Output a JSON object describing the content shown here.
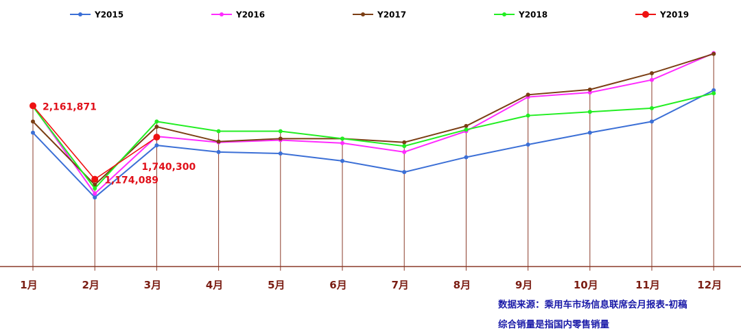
{
  "chart_data": {
    "type": "line",
    "categories": [
      "1月",
      "2月",
      "3月",
      "4月",
      "5月",
      "6月",
      "7月",
      "8月",
      "9月",
      "10月",
      "11月",
      "12月"
    ],
    "series": [
      {
        "name": "Y2015",
        "color": "#3b6fd6",
        "values": [
          1.8,
          0.93,
          1.63,
          1.54,
          1.52,
          1.42,
          1.27,
          1.47,
          1.64,
          1.8,
          1.95,
          2.37
        ]
      },
      {
        "name": "Y2016",
        "color": "#ff2bff",
        "values": [
          2.16,
          0.98,
          1.75,
          1.67,
          1.7,
          1.66,
          1.54,
          1.82,
          2.28,
          2.34,
          2.51,
          2.87
        ]
      },
      {
        "name": "Y2017",
        "color": "#7b3e14",
        "values": [
          1.95,
          1.1,
          1.88,
          1.68,
          1.72,
          1.72,
          1.67,
          1.89,
          2.31,
          2.38,
          2.6,
          2.86
        ]
      },
      {
        "name": "Y2018",
        "color": "#22ee22",
        "values": [
          2.15,
          1.05,
          1.95,
          1.82,
          1.82,
          1.72,
          1.62,
          1.84,
          2.03,
          2.08,
          2.13,
          2.33
        ]
      },
      {
        "name": "Y2019",
        "color": "#ee1111",
        "values": [
          2.161871,
          1.174089,
          1.7403,
          null,
          null,
          null,
          null,
          null,
          null,
          null,
          null,
          null
        ]
      }
    ],
    "data_labels": [
      {
        "series": "Y2019",
        "month": "1月",
        "text": "2,161,871"
      },
      {
        "series": "Y2019",
        "month": "2月",
        "text": "1,174,089"
      },
      {
        "series": "Y2019",
        "month": "3月",
        "text": "1,740,300"
      }
    ],
    "ylim": [
      0.0,
      3.4
    ],
    "grid": "vertical drop lines at each month",
    "legend_position": "top"
  },
  "source": {
    "line1": "数据来源：乘用车市场信息联席会月报表-初稿",
    "line2": "综合销量是指国内零售销量"
  }
}
